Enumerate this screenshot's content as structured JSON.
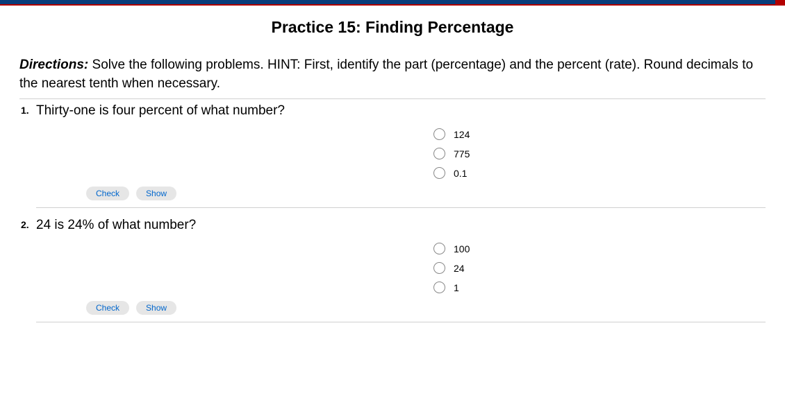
{
  "page": {
    "title": "Practice 15: Finding Percentage",
    "directions_label": "Directions:",
    "directions_text": " Solve the following problems. HINT: First, identify the part (percentage) and the percent (rate). Round decimals to the nearest tenth when necessary."
  },
  "questions": [
    {
      "number": "1.",
      "text": "Thirty-one is four percent of what number?",
      "options": [
        "124",
        "775",
        "0.1"
      ],
      "check_label": "Check",
      "show_label": "Show"
    },
    {
      "number": "2.",
      "text": "24 is 24% of what number?",
      "options": [
        "100",
        "24",
        "1"
      ],
      "check_label": "Check",
      "show_label": "Show"
    }
  ],
  "colors": {
    "top_bar": "#0a3d7a",
    "accent": "#b30000",
    "button_text": "#0066cc",
    "button_bg": "#e6e6e6",
    "divider": "#d0d0d0",
    "radio_border": "#888888",
    "text": "#000000",
    "background": "#ffffff"
  }
}
